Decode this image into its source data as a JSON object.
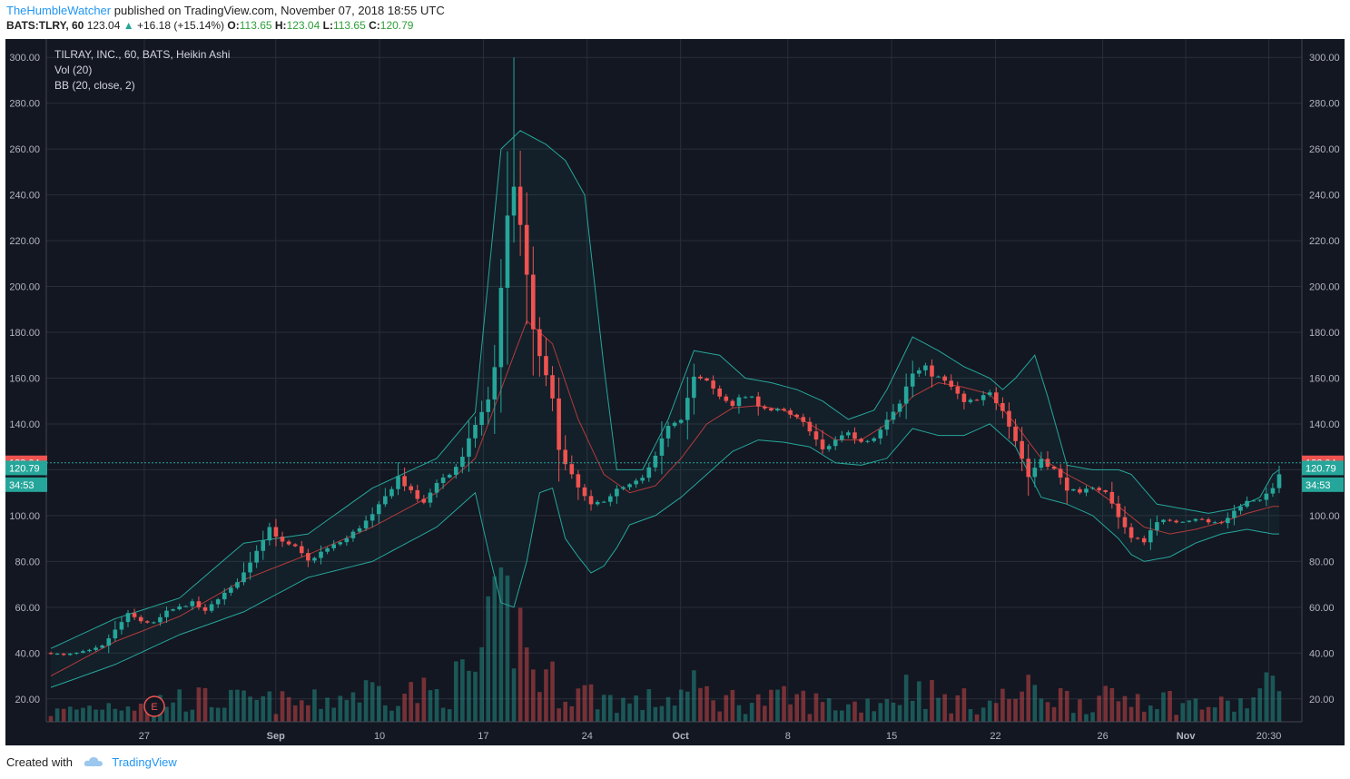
{
  "header": {
    "author": "TheHumbleWatcher",
    "published_text": "published on TradingView.com, November 07, 2018 18:55 UTC",
    "symbol": "BATS:TLRY, 60",
    "last": "123.04",
    "change": "+16.18 (+15.14%)",
    "o_label": "O:",
    "o_value": "113.65",
    "h_label": "H:",
    "h_value": "123.04",
    "l_label": "L:",
    "l_value": "113.65",
    "c_label": "C:",
    "c_value": "120.79"
  },
  "legend": {
    "title": "TILRAY, INC., 60, BATS, Heikin Ashi",
    "vol": "Vol (20)",
    "bb": "BB (20, close, 2)"
  },
  "footer": {
    "created": "Created with",
    "brand": "TradingView"
  },
  "colors": {
    "background": "#131722",
    "grid": "#2a2e39",
    "up": "#26a69a",
    "down": "#ef5350",
    "bb_band": "#26a69a",
    "bb_basis": "#b33b3b",
    "axis_text": "#b2b5be"
  },
  "chart_data": {
    "type": "candlestick",
    "title": "TILRAY, INC., 60, BATS, Heikin Ashi",
    "ylim": [
      10,
      308
    ],
    "y_ticks": [
      "300.00",
      "280.00",
      "260.00",
      "240.00",
      "220.00",
      "200.00",
      "180.00",
      "160.00",
      "140.00",
      "120.00",
      "100.00",
      "80.00",
      "60.00",
      "40.00",
      "20.00"
    ],
    "x_ticks": [
      "27",
      "Sep",
      "10",
      "17",
      "24",
      "Oct",
      "8",
      "15",
      "22",
      "26",
      "Nov",
      "20:30"
    ],
    "price_labels": [
      {
        "text": "123.04",
        "value": 123.04,
        "color": "#ef5350"
      },
      {
        "text": "120.79",
        "value": 120.79,
        "color": "#26a69a"
      },
      {
        "text": "34:53",
        "value": 113.5,
        "color": "#26a69a"
      }
    ],
    "last_price": 123.04,
    "earnings_marker": "E",
    "close_path": [
      [
        0,
        40
      ],
      [
        2,
        39
      ],
      [
        4,
        40
      ],
      [
        6,
        41
      ],
      [
        8,
        43
      ],
      [
        10,
        50
      ],
      [
        12,
        57
      ],
      [
        14,
        54
      ],
      [
        16,
        53
      ],
      [
        18,
        58
      ],
      [
        20,
        60
      ],
      [
        22,
        62
      ],
      [
        24,
        58
      ],
      [
        26,
        64
      ],
      [
        28,
        68
      ],
      [
        30,
        75
      ],
      [
        32,
        85
      ],
      [
        34,
        95
      ],
      [
        36,
        88
      ],
      [
        38,
        86
      ],
      [
        40,
        80
      ],
      [
        42,
        84
      ],
      [
        44,
        87
      ],
      [
        46,
        90
      ],
      [
        48,
        95
      ],
      [
        50,
        100
      ],
      [
        52,
        108
      ],
      [
        54,
        117
      ],
      [
        56,
        110
      ],
      [
        58,
        105
      ],
      [
        60,
        115
      ],
      [
        62,
        118
      ],
      [
        64,
        125
      ],
      [
        66,
        140
      ],
      [
        68,
        150
      ],
      [
        69,
        165
      ],
      [
        70,
        200
      ],
      [
        71,
        230
      ],
      [
        72,
        245
      ],
      [
        73,
        225
      ],
      [
        74,
        205
      ],
      [
        75,
        180
      ],
      [
        76,
        170
      ],
      [
        78,
        150
      ],
      [
        79,
        130
      ],
      [
        80,
        122
      ],
      [
        82,
        112
      ],
      [
        84,
        104
      ],
      [
        86,
        107
      ],
      [
        88,
        111
      ],
      [
        90,
        113
      ],
      [
        92,
        116
      ],
      [
        94,
        125
      ],
      [
        96,
        140
      ],
      [
        98,
        143
      ],
      [
        100,
        160
      ],
      [
        102,
        158
      ],
      [
        104,
        152
      ],
      [
        106,
        149
      ],
      [
        108,
        152
      ],
      [
        110,
        149
      ],
      [
        112,
        146
      ],
      [
        114,
        145
      ],
      [
        116,
        142
      ],
      [
        118,
        138
      ],
      [
        120,
        128
      ],
      [
        122,
        133
      ],
      [
        124,
        136
      ],
      [
        126,
        132
      ],
      [
        128,
        134
      ],
      [
        130,
        143
      ],
      [
        132,
        150
      ],
      [
        134,
        162
      ],
      [
        136,
        164
      ],
      [
        138,
        160
      ],
      [
        140,
        156
      ],
      [
        142,
        149
      ],
      [
        144,
        150
      ],
      [
        146,
        153
      ],
      [
        148,
        147
      ],
      [
        150,
        133
      ],
      [
        152,
        117
      ],
      [
        154,
        125
      ],
      [
        156,
        120
      ],
      [
        158,
        112
      ],
      [
        160,
        109
      ],
      [
        162,
        113
      ],
      [
        164,
        110
      ],
      [
        166,
        100
      ],
      [
        168,
        90
      ],
      [
        170,
        89
      ],
      [
        172,
        98
      ],
      [
        174,
        97
      ],
      [
        176,
        98
      ],
      [
        178,
        99
      ],
      [
        180,
        97
      ],
      [
        182,
        97
      ],
      [
        184,
        102
      ],
      [
        186,
        106
      ],
      [
        188,
        106
      ],
      [
        190,
        113
      ],
      [
        191,
        119
      ]
    ],
    "bb_upper": [
      [
        0,
        42
      ],
      [
        10,
        55
      ],
      [
        20,
        64
      ],
      [
        30,
        88
      ],
      [
        40,
        92
      ],
      [
        50,
        112
      ],
      [
        60,
        125
      ],
      [
        66,
        145
      ],
      [
        70,
        260
      ],
      [
        73,
        268
      ],
      [
        77,
        262
      ],
      [
        80,
        255
      ],
      [
        83,
        240
      ],
      [
        86,
        165
      ],
      [
        88,
        120
      ],
      [
        92,
        120
      ],
      [
        96,
        142
      ],
      [
        100,
        172
      ],
      [
        104,
        170
      ],
      [
        108,
        160
      ],
      [
        112,
        158
      ],
      [
        116,
        155
      ],
      [
        120,
        150
      ],
      [
        124,
        142
      ],
      [
        128,
        146
      ],
      [
        130,
        155
      ],
      [
        134,
        178
      ],
      [
        138,
        172
      ],
      [
        142,
        165
      ],
      [
        146,
        160
      ],
      [
        148,
        155
      ],
      [
        150,
        160
      ],
      [
        153,
        170
      ],
      [
        155,
        152
      ],
      [
        158,
        122
      ],
      [
        162,
        120
      ],
      [
        166,
        120
      ],
      [
        168,
        118
      ],
      [
        172,
        105
      ],
      [
        176,
        103
      ],
      [
        180,
        101
      ],
      [
        184,
        103
      ],
      [
        188,
        108
      ],
      [
        190,
        118
      ],
      [
        191,
        120
      ]
    ],
    "bb_basis": [
      [
        0,
        30
      ],
      [
        10,
        45
      ],
      [
        20,
        56
      ],
      [
        30,
        72
      ],
      [
        40,
        83
      ],
      [
        50,
        95
      ],
      [
        60,
        110
      ],
      [
        66,
        125
      ],
      [
        70,
        155
      ],
      [
        74,
        185
      ],
      [
        78,
        175
      ],
      [
        82,
        142
      ],
      [
        86,
        118
      ],
      [
        90,
        110
      ],
      [
        94,
        113
      ],
      [
        98,
        125
      ],
      [
        102,
        140
      ],
      [
        106,
        147
      ],
      [
        110,
        148
      ],
      [
        114,
        146
      ],
      [
        118,
        140
      ],
      [
        122,
        133
      ],
      [
        126,
        133
      ],
      [
        130,
        140
      ],
      [
        134,
        152
      ],
      [
        138,
        158
      ],
      [
        142,
        156
      ],
      [
        146,
        153
      ],
      [
        150,
        140
      ],
      [
        154,
        125
      ],
      [
        158,
        118
      ],
      [
        162,
        112
      ],
      [
        166,
        104
      ],
      [
        170,
        95
      ],
      [
        174,
        92
      ],
      [
        178,
        94
      ],
      [
        182,
        97
      ],
      [
        186,
        101
      ],
      [
        190,
        104
      ],
      [
        191,
        104
      ]
    ],
    "bb_lower": [
      [
        0,
        25
      ],
      [
        10,
        35
      ],
      [
        20,
        48
      ],
      [
        30,
        58
      ],
      [
        40,
        73
      ],
      [
        50,
        80
      ],
      [
        60,
        95
      ],
      [
        66,
        110
      ],
      [
        68,
        85
      ],
      [
        70,
        62
      ],
      [
        72,
        60
      ],
      [
        74,
        80
      ],
      [
        76,
        110
      ],
      [
        78,
        112
      ],
      [
        80,
        90
      ],
      [
        82,
        82
      ],
      [
        84,
        75
      ],
      [
        86,
        78
      ],
      [
        88,
        86
      ],
      [
        90,
        96
      ],
      [
        94,
        100
      ],
      [
        98,
        108
      ],
      [
        102,
        118
      ],
      [
        106,
        128
      ],
      [
        110,
        133
      ],
      [
        114,
        132
      ],
      [
        118,
        130
      ],
      [
        122,
        123
      ],
      [
        126,
        122
      ],
      [
        130,
        125
      ],
      [
        134,
        138
      ],
      [
        138,
        135
      ],
      [
        142,
        135
      ],
      [
        146,
        140
      ],
      [
        150,
        130
      ],
      [
        154,
        108
      ],
      [
        158,
        105
      ],
      [
        162,
        100
      ],
      [
        166,
        90
      ],
      [
        168,
        83
      ],
      [
        170,
        80
      ],
      [
        174,
        82
      ],
      [
        178,
        88
      ],
      [
        182,
        92
      ],
      [
        186,
        94
      ],
      [
        190,
        92
      ],
      [
        191,
        92
      ]
    ],
    "volume": [
      [
        0,
        4
      ],
      [
        10,
        8
      ],
      [
        20,
        10
      ],
      [
        30,
        9
      ],
      [
        40,
        8
      ],
      [
        50,
        14
      ],
      [
        60,
        12
      ],
      [
        66,
        22
      ],
      [
        70,
        45
      ],
      [
        72,
        48
      ],
      [
        74,
        30
      ],
      [
        76,
        20
      ],
      [
        80,
        14
      ],
      [
        84,
        12
      ],
      [
        90,
        8
      ],
      [
        96,
        10
      ],
      [
        100,
        14
      ],
      [
        104,
        10
      ],
      [
        110,
        9
      ],
      [
        116,
        10
      ],
      [
        120,
        8
      ],
      [
        124,
        7
      ],
      [
        128,
        9
      ],
      [
        132,
        12
      ],
      [
        134,
        18
      ],
      [
        138,
        10
      ],
      [
        142,
        9
      ],
      [
        146,
        8
      ],
      [
        150,
        12
      ],
      [
        154,
        14
      ],
      [
        158,
        10
      ],
      [
        162,
        9
      ],
      [
        166,
        10
      ],
      [
        170,
        12
      ],
      [
        176,
        8
      ],
      [
        182,
        7
      ],
      [
        186,
        8
      ],
      [
        190,
        16
      ],
      [
        191,
        18
      ]
    ]
  }
}
